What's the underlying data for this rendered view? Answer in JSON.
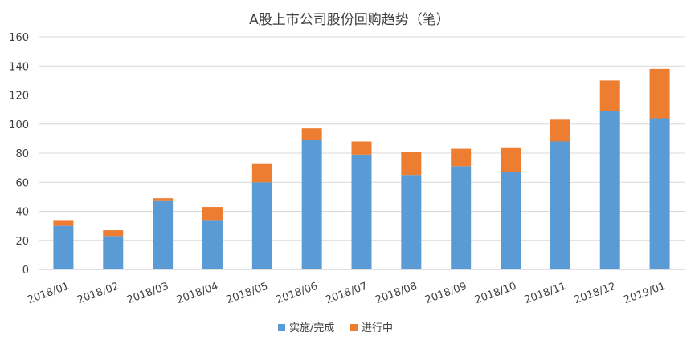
{
  "chart_data": {
    "type": "bar",
    "stacked": true,
    "title": "A股上市公司股份回购趋势（笔）",
    "xlabel": "",
    "ylabel": "",
    "categories": [
      "2018/01",
      "2018/02",
      "2018/03",
      "2018/04",
      "2018/05",
      "2018/06",
      "2018/07",
      "2018/08",
      "2018/09",
      "2018/10",
      "2018/11",
      "2018/12",
      "2019/01"
    ],
    "series": [
      {
        "name": "实施/完成",
        "color": "#5b9bd5",
        "values": [
          30,
          23,
          47,
          34,
          60,
          89,
          79,
          65,
          71,
          67,
          88,
          109,
          104
        ]
      },
      {
        "name": "进行中",
        "color": "#ed7d31",
        "values": [
          4,
          4,
          2,
          9,
          13,
          8,
          9,
          16,
          12,
          17,
          15,
          21,
          34
        ]
      }
    ],
    "ylim": [
      0,
      160
    ],
    "yticks": [
      0,
      20,
      40,
      60,
      80,
      100,
      120,
      140,
      160
    ],
    "grid": true,
    "legend_position": "bottom"
  }
}
